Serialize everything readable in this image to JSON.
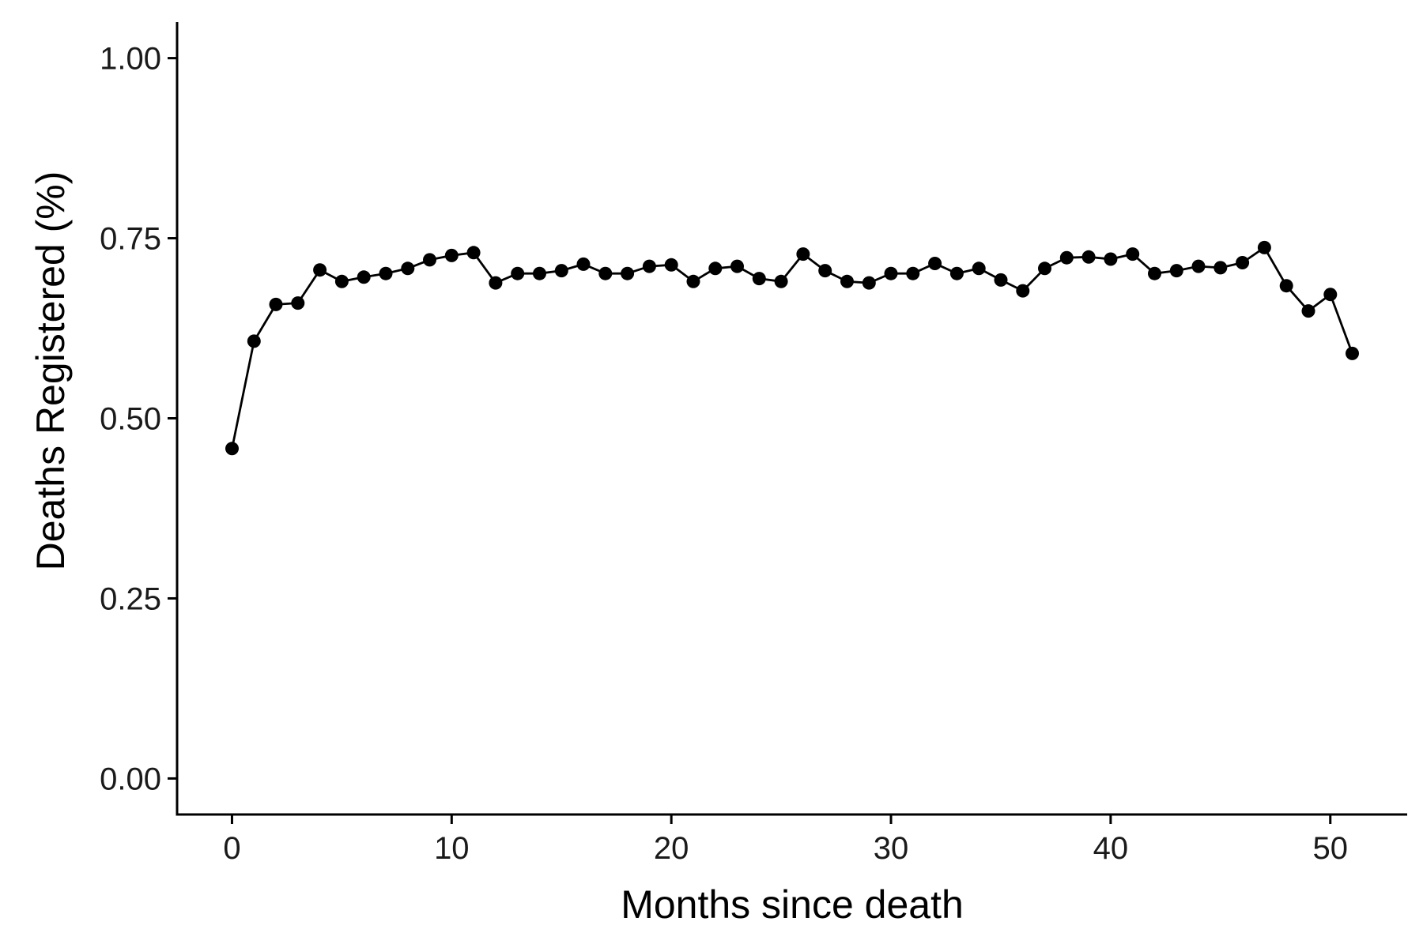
{
  "chart_data": {
    "type": "line",
    "title": "",
    "xlabel": "Months since death",
    "ylabel": "Deaths Registered (%)",
    "xlim": [
      -2.5,
      53.5
    ],
    "ylim": [
      -0.05,
      1.05
    ],
    "x_ticks": [
      0,
      10,
      20,
      30,
      40,
      50
    ],
    "x_tick_labels": [
      "0",
      "10",
      "20",
      "30",
      "40",
      "50"
    ],
    "y_ticks": [
      0,
      0.25,
      0.5,
      0.75,
      1.0
    ],
    "y_tick_labels": [
      "0.00",
      "0.25",
      "0.50",
      "0.75",
      "1.00"
    ],
    "grid": false,
    "legend": "none",
    "series": [
      {
        "color": "#000000",
        "markers": true,
        "x": [
          0,
          1,
          2,
          3,
          4,
          5,
          6,
          7,
          8,
          9,
          10,
          11,
          12,
          13,
          14,
          15,
          16,
          17,
          18,
          19,
          20,
          21,
          22,
          23,
          24,
          25,
          26,
          27,
          28,
          29,
          30,
          31,
          32,
          33,
          34,
          35,
          36,
          37,
          38,
          39,
          40,
          41,
          42,
          43,
          44,
          45,
          46,
          47,
          48,
          49,
          50,
          51
        ],
        "y": [
          0.458,
          0.607,
          0.658,
          0.66,
          0.706,
          0.69,
          0.696,
          0.701,
          0.708,
          0.72,
          0.726,
          0.73,
          0.688,
          0.701,
          0.701,
          0.705,
          0.714,
          0.701,
          0.701,
          0.711,
          0.713,
          0.69,
          0.708,
          0.711,
          0.694,
          0.69,
          0.728,
          0.705,
          0.69,
          0.688,
          0.701,
          0.701,
          0.715,
          0.701,
          0.708,
          0.692,
          0.677,
          0.708,
          0.723,
          0.724,
          0.721,
          0.728,
          0.701,
          0.705,
          0.711,
          0.709,
          0.716,
          0.737,
          0.684,
          0.649,
          0.672,
          0.59
        ]
      }
    ]
  }
}
